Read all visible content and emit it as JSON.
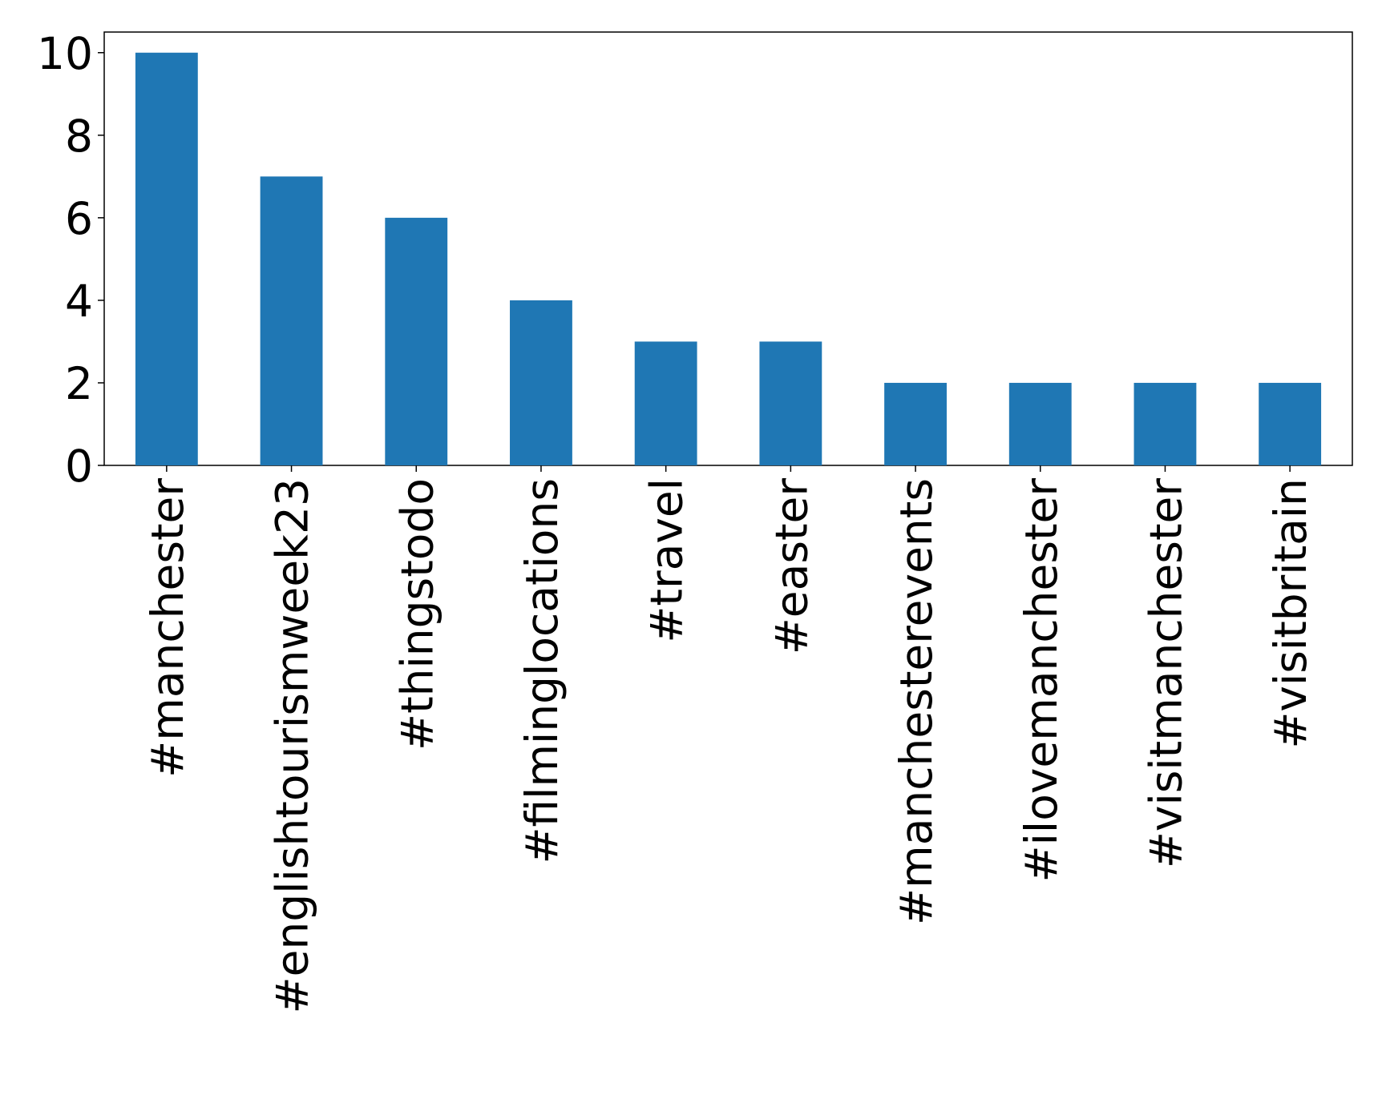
{
  "chart_data": {
    "type": "bar",
    "categories": [
      "#manchester",
      "#englishtourismweek23",
      "#thingstodo",
      "#filminglocations",
      "#travel",
      "#easter",
      "#manchesterevents",
      "#ilovemanchester",
      "#visitmanchester",
      "#visitbritain"
    ],
    "values": [
      10,
      7,
      6,
      4,
      3,
      3,
      2,
      2,
      2,
      2
    ],
    "color": "#1f77b4",
    "ylim": [
      0,
      10.5
    ],
    "yticks": [
      0,
      2,
      4,
      6,
      8,
      10
    ],
    "grid": false
  }
}
